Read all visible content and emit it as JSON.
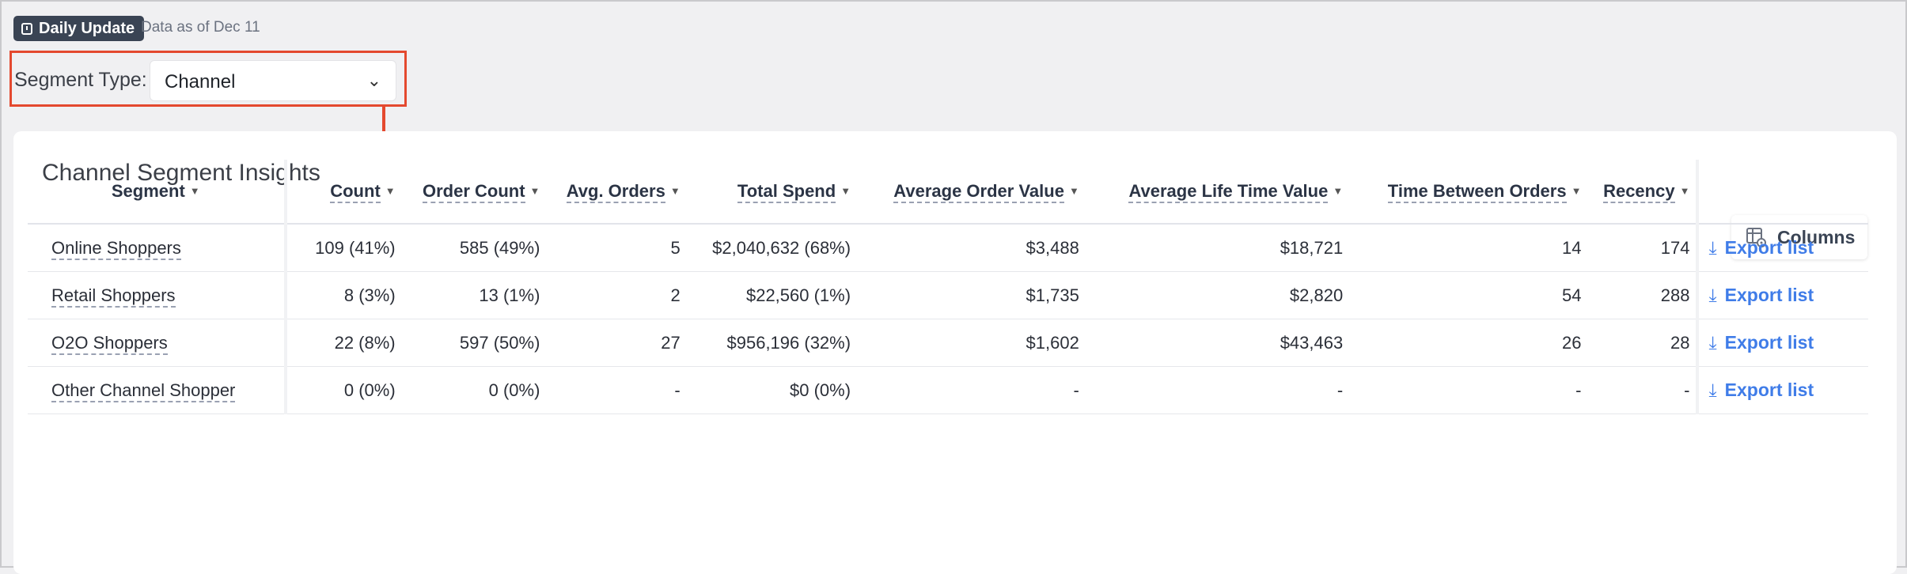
{
  "header": {
    "badge_label": "Daily Update",
    "data_as_of": "Data as of Dec 11"
  },
  "segment_type": {
    "label": "Segment Type:",
    "selected": "Channel"
  },
  "card": {
    "title": "Channel Segment Insights",
    "columns_button": "Columns"
  },
  "table": {
    "columns": [
      "Segment",
      "Count",
      "Order Count",
      "Avg. Orders",
      "Total Spend",
      "Average Order Value",
      "Average Life Time Value",
      "Time Between Orders",
      "Recency"
    ],
    "rows": [
      {
        "segment": "Online Shoppers",
        "count": "109 (41%)",
        "order_count": "585 (49%)",
        "avg_orders": "5",
        "total_spend": "$2,040,632 (68%)",
        "aov": "$3,488",
        "ltv": "$18,721",
        "tbo": "14",
        "recency": "174",
        "action": "Export list"
      },
      {
        "segment": "Retail Shoppers",
        "count": "8 (3%)",
        "order_count": "13 (1%)",
        "avg_orders": "2",
        "total_spend": "$22,560 (1%)",
        "aov": "$1,735",
        "ltv": "$2,820",
        "tbo": "54",
        "recency": "288",
        "action": "Export list"
      },
      {
        "segment": "O2O Shoppers",
        "count": "22 (8%)",
        "order_count": "597 (50%)",
        "avg_orders": "27",
        "total_spend": "$956,196 (32%)",
        "aov": "$1,602",
        "ltv": "$43,463",
        "tbo": "26",
        "recency": "28",
        "action": "Export list"
      },
      {
        "segment": "Other Channel Shopper",
        "count": "0 (0%)",
        "order_count": "0 (0%)",
        "avg_orders": "-",
        "total_spend": "$0 (0%)",
        "aov": "-",
        "ltv": "-",
        "tbo": "-",
        "recency": "-",
        "action": "Export list"
      }
    ]
  },
  "colors": {
    "highlight": "#e4492f",
    "link": "#3f7ce8",
    "badge_bg": "#3a4454"
  },
  "icons": {
    "badge": "calendar-icon",
    "select": "chevron-down-icon",
    "columns": "table-settings-icon",
    "sort": "caret-down-icon",
    "export": "download-icon"
  }
}
